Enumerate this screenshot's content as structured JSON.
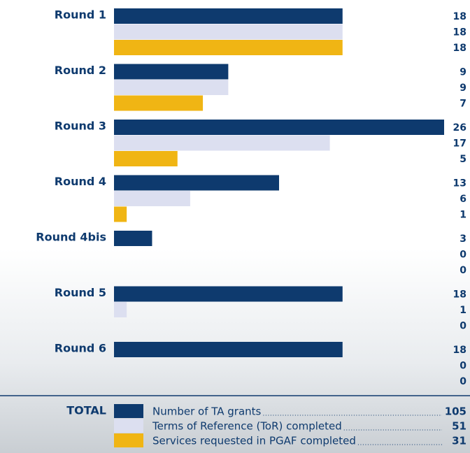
{
  "chart_data": {
    "type": "bar",
    "categories": [
      "Round 1",
      "Round 2",
      "Round 3",
      "Round 4",
      "Round 4bis",
      "Round 5",
      "Round 6"
    ],
    "series": [
      {
        "name": "Number of TA grants",
        "color": "#0e3a6e",
        "values": [
          18,
          9,
          26,
          13,
          3,
          18,
          18
        ],
        "total": 105
      },
      {
        "name": "Terms of Reference (ToR) completed",
        "color": "#dcdff0",
        "values": [
          18,
          9,
          17,
          6,
          0,
          1,
          0
        ],
        "total": 51
      },
      {
        "name": "Services requested in PGAF completed",
        "color": "#f0b514",
        "values": [
          18,
          7,
          5,
          1,
          0,
          0,
          0
        ],
        "total": 31
      }
    ],
    "total_label": "TOTAL"
  }
}
